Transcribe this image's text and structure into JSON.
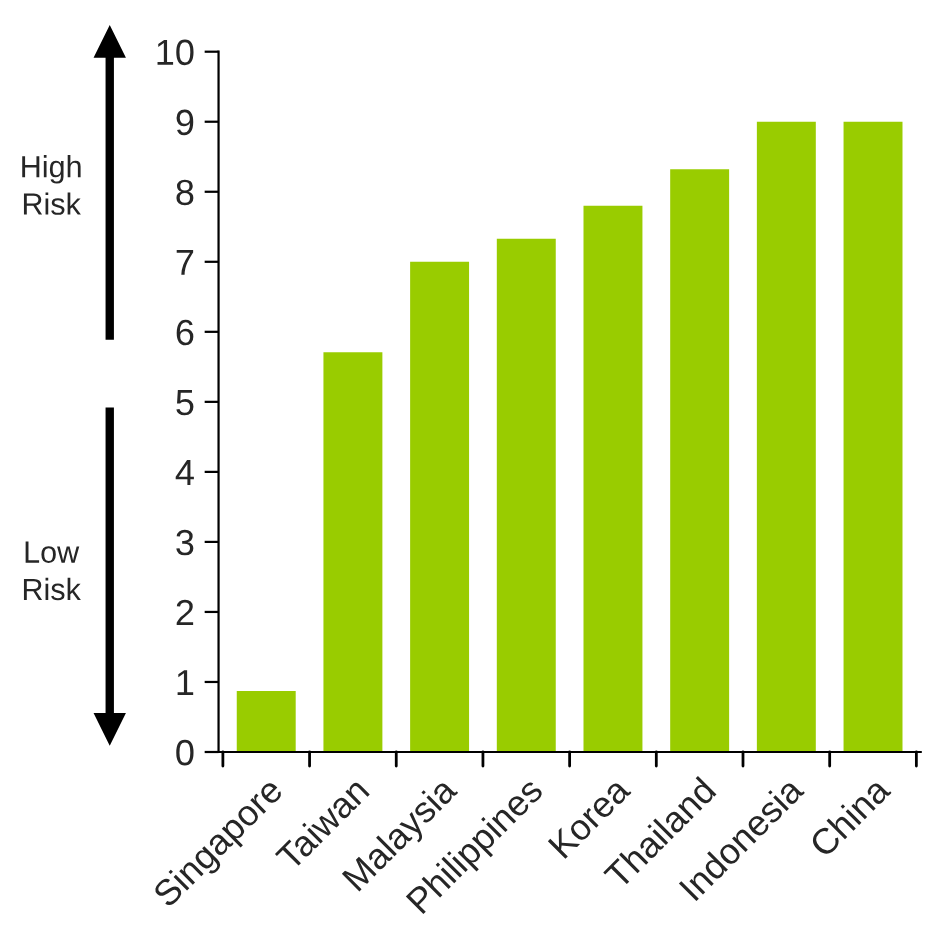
{
  "chart_data": {
    "type": "bar",
    "categories": [
      "Singapore",
      "Taiwan",
      "Malaysia",
      "Philippines",
      "Korea",
      "Thailand",
      "Indonesia",
      "China"
    ],
    "values": [
      0.87,
      5.71,
      7.0,
      7.33,
      7.8,
      8.32,
      9.0,
      9.0
    ],
    "color": "#99cc00",
    "ylim": [
      0,
      10
    ],
    "yticks": [
      0,
      1,
      2,
      3,
      4,
      5,
      6,
      7,
      8,
      9,
      10
    ],
    "annotations": [
      "High\nRisk",
      "Low\nRisk"
    ],
    "grid": false,
    "legend": false
  }
}
